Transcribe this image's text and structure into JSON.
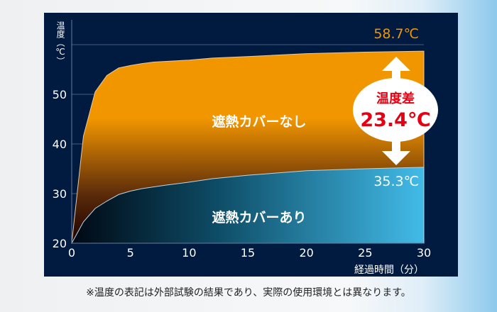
{
  "chart_data": {
    "type": "area",
    "xlabel": "経過時間（分）",
    "ylabel": "温度（℃）",
    "xlim": [
      0,
      30
    ],
    "ylim": [
      20,
      60
    ],
    "xticks": [
      0,
      5,
      10,
      15,
      20,
      25,
      30
    ],
    "yticks": [
      20,
      30,
      40,
      50
    ],
    "grid": true,
    "series": [
      {
        "name": "遮熱カバーなし",
        "color": "#f29600",
        "end_label": "58.7℃",
        "x": [
          0,
          1,
          2,
          3,
          4,
          5,
          6,
          7,
          10,
          12,
          15,
          20,
          25,
          30
        ],
        "y": [
          20,
          41.6,
          50.5,
          53.8,
          55.3,
          55.8,
          56.2,
          56.5,
          56.9,
          57.3,
          57.6,
          58.2,
          58.5,
          58.7
        ]
      },
      {
        "name": "遮熱カバーあり",
        "color": "#3fb8e6",
        "end_label": "35.3℃",
        "x": [
          0,
          1,
          2,
          3,
          4,
          5,
          6,
          8,
          10,
          12,
          15,
          20,
          25,
          30
        ],
        "y": [
          20,
          24.3,
          27,
          28.5,
          29.8,
          30.5,
          31,
          31.7,
          32.3,
          33,
          33.7,
          34.6,
          35,
          35.3
        ]
      }
    ],
    "annotation": {
      "title": "温度差",
      "value": "23.4℃"
    }
  },
  "footnote": "※温度の表記は外部試験の結果であり、実際の使用環境とは異なります。"
}
